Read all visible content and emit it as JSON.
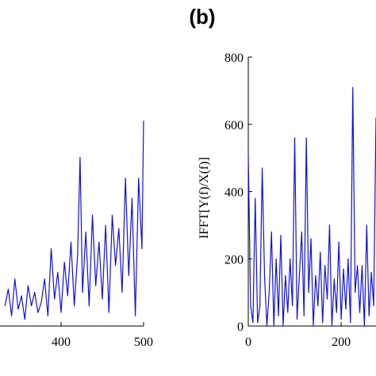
{
  "title": "(b)",
  "chart_data": [
    {
      "type": "line",
      "xlim": [
        300,
        500
      ],
      "ylim": [
        0,
        800
      ],
      "xticks": [
        400,
        500
      ],
      "x": [
        332,
        336,
        340,
        344,
        348,
        352,
        356,
        360,
        364,
        368,
        372,
        376,
        380,
        384,
        388,
        392,
        396,
        400,
        404,
        408,
        412,
        416,
        420,
        423,
        426,
        430,
        434,
        438,
        442,
        446,
        450,
        454,
        458,
        462,
        466,
        470,
        474,
        478,
        482,
        486,
        490,
        494,
        498,
        500
      ],
      "series": [
        {
          "color": "#1010e0",
          "values": [
            60,
            110,
            30,
            140,
            50,
            90,
            20,
            120,
            60,
            100,
            40,
            70,
            140,
            30,
            230,
            80,
            160,
            40,
            190,
            90,
            250,
            60,
            210,
            502,
            100,
            280,
            60,
            330,
            120,
            250,
            80,
            300,
            40,
            330,
            180,
            290,
            100,
            440,
            150,
            380,
            30,
            440,
            230,
            611
          ]
        }
      ]
    },
    {
      "type": "line",
      "y_label": "IFFT[Y(f)/X(f)]",
      "xlim": [
        0,
        275
      ],
      "ylim": [
        0,
        800
      ],
      "xticks": [
        0,
        200
      ],
      "yticks": [
        0,
        200,
        400,
        600,
        800
      ],
      "x": [
        0,
        5,
        10,
        15,
        20,
        25,
        30,
        35,
        40,
        45,
        50,
        55,
        60,
        65,
        70,
        75,
        80,
        85,
        90,
        95,
        100,
        105,
        110,
        115,
        120,
        125,
        130,
        135,
        140,
        145,
        150,
        155,
        160,
        165,
        170,
        175,
        180,
        185,
        190,
        195,
        200,
        205,
        210,
        215,
        220,
        225,
        230,
        235,
        240,
        245,
        250,
        255,
        260,
        265,
        270,
        275
      ],
      "series": [
        {
          "color": "#1010e0",
          "values": [
            510,
            60,
            10,
            380,
            10,
            60,
            470,
            150,
            0,
            100,
            280,
            0,
            200,
            30,
            270,
            0,
            150,
            40,
            200,
            60,
            560,
            20,
            150,
            280,
            30,
            560,
            100,
            260,
            0,
            150,
            60,
            220,
            10,
            180,
            80,
            300,
            0,
            140,
            40,
            250,
            20,
            170,
            50,
            200,
            10,
            710,
            100,
            180,
            40,
            180,
            0,
            300,
            30,
            160,
            60,
            620
          ]
        }
      ]
    }
  ]
}
